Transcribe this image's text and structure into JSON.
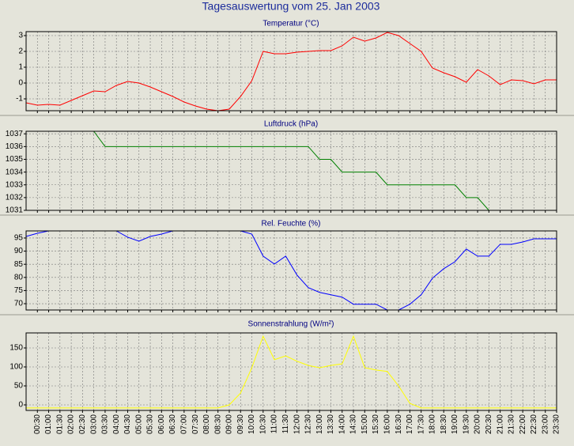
{
  "title": "Tagesauswertung vom 25. Jan 2003",
  "categories": [
    null,
    "00:30",
    "01:00",
    "01:30",
    "02:00",
    "02:30",
    "03:00",
    "03:30",
    "04:00",
    "04:30",
    "05:00",
    "05:30",
    "06:00",
    "06:30",
    "07:00",
    "07:30",
    "08:00",
    "08:30",
    "09:00",
    "09:30",
    "10:00",
    "10:30",
    "11:00",
    "11:30",
    "12:00",
    "12:30",
    "13:00",
    "13:30",
    "14:00",
    "14:30",
    "15:00",
    "15:30",
    "16:00",
    "16:30",
    "17:00",
    "17:30",
    "18:00",
    "18:30",
    "19:00",
    "19:30",
    "20:00",
    "20:30",
    "21:00",
    "21:30",
    "22:00",
    "22:30",
    "23:00",
    "23:30"
  ],
  "chart_data": [
    {
      "type": "line",
      "title": "Temperatur (°C)",
      "color": "#ff0000",
      "grid": true,
      "ylim": [
        -1.75,
        3.25
      ],
      "yticks": [
        -1,
        0,
        1,
        2,
        3
      ],
      "values": [
        -1.25,
        -1.4,
        -1.35,
        -1.4,
        -1.1,
        -0.8,
        -0.5,
        -0.55,
        -0.15,
        0.1,
        0,
        -0.25,
        -0.55,
        -0.85,
        -1.2,
        -1.45,
        -1.65,
        -1.75,
        -1.65,
        -0.85,
        0.15,
        2.0,
        1.85,
        1.85,
        1.95,
        2.0,
        2.05,
        2.05,
        2.35,
        2.9,
        2.65,
        2.85,
        3.2,
        3.0,
        2.5,
        2.0,
        0.95,
        0.65,
        0.4,
        0.05,
        0.85,
        0.45,
        -0.1,
        0.2,
        0.15,
        -0.05,
        0.2,
        0.2
      ]
    },
    {
      "type": "line",
      "title": "Luftdruck (hPa)",
      "color": "#008000",
      "grid": true,
      "ylim": [
        1031,
        1037.2
      ],
      "yticks": [
        1031,
        1032,
        1033,
        1034,
        1035,
        1036,
        1037
      ],
      "values": [
        null,
        null,
        null,
        null,
        null,
        null,
        1037.2,
        1036,
        1036,
        1036,
        1036,
        1036,
        1036,
        1036,
        1036,
        1036,
        1036,
        1036,
        1036,
        1036,
        1036,
        1036,
        1036,
        1036,
        1036,
        1036,
        1035,
        1035,
        1034,
        1034,
        1034,
        1034,
        1033,
        1033,
        1033,
        1033,
        1033,
        1033,
        1033,
        1032,
        1032,
        1031,
        null,
        null,
        null,
        null,
        null,
        null
      ]
    },
    {
      "type": "line",
      "title": "Rel. Feuchte (%)",
      "color": "#0000ff",
      "grid": true,
      "ylim": [
        67.6,
        97.7
      ],
      "yticks": [
        70,
        75,
        80,
        85,
        90,
        95
      ],
      "values": [
        95.6,
        96.8,
        97.7,
        null,
        null,
        null,
        null,
        null,
        97.7,
        95.3,
        93.8,
        95.6,
        96.5,
        97.7,
        null,
        null,
        null,
        null,
        null,
        97.7,
        96.5,
        88.1,
        85.1,
        88.1,
        80.9,
        76.1,
        74.3,
        73.4,
        72.5,
        69.8,
        69.8,
        69.8,
        67.6,
        67.6,
        69.8,
        73.4,
        79.7,
        83.3,
        86,
        90.8,
        88.1,
        88.1,
        92.6,
        92.6,
        93.5,
        94.7,
        94.7,
        94.7
      ]
    },
    {
      "type": "line",
      "title": "Sonnenstrahlung (W/m²)",
      "color": "#ffff00",
      "grid": true,
      "ylim": [
        -14.6,
        189.6
      ],
      "yticks": [
        0,
        50,
        100,
        150
      ],
      "values": [
        -8,
        -8,
        -8,
        -8,
        -8,
        -8,
        -8,
        -8,
        -8,
        -8,
        -8,
        -8,
        -8,
        -8,
        -8,
        -8,
        -8,
        -8,
        0,
        31,
        98,
        181,
        119,
        129,
        115,
        104,
        98,
        104,
        108,
        181,
        98,
        92,
        88,
        50,
        4,
        -8,
        -8,
        -8,
        -8,
        -8,
        -8,
        -8,
        -8,
        -8,
        -8,
        -8,
        -8,
        -8
      ]
    }
  ]
}
